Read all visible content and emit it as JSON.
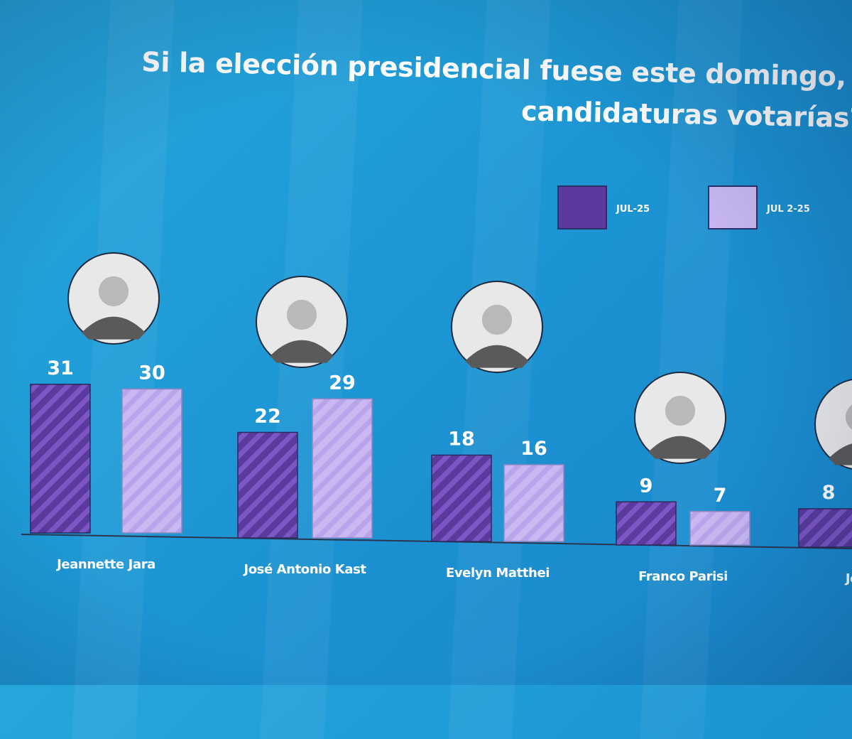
{
  "header": {
    "title_line1": "Si la elección presidencial fuese este domingo, ¿p",
    "title_line2": "candidaturas votarías?"
  },
  "colors": {
    "series1": "#5a3a9c",
    "series1_hatch": "#7c56c4",
    "series2": "#c9b8f2",
    "series2_hatch": "#b8a4ea",
    "axis": "#2a3550"
  },
  "chart_data": {
    "type": "bar",
    "title": "Si la elección presidencial fuese este domingo, ¿p candidaturas votarías?",
    "categories": [
      "Jeannette Jara",
      "José Antonio Kast",
      "Evelyn Matthei",
      "Franco Parisi",
      "Johann"
    ],
    "series": [
      {
        "name": "JUL-25",
        "values": [
          31,
          22,
          18,
          9,
          8
        ]
      },
      {
        "name": "JUL 2-25",
        "values": [
          30,
          29,
          16,
          7,
          null
        ]
      }
    ],
    "ylim": [
      0,
      31
    ],
    "grid": false,
    "legend": "top-right"
  }
}
